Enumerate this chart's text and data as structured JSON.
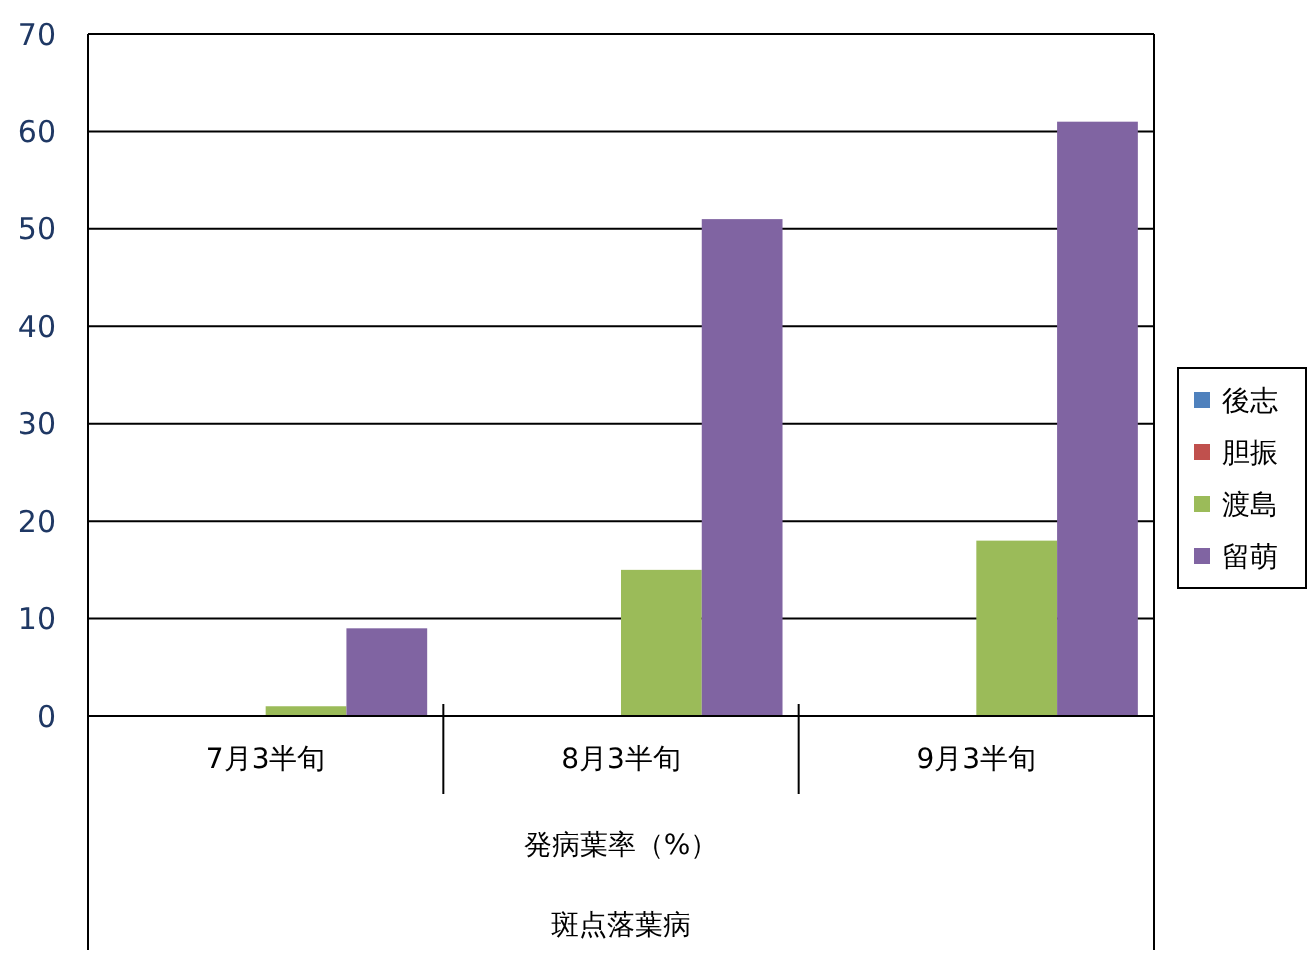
{
  "chart_data": {
    "type": "bar",
    "categories": [
      "7月3半旬",
      "8月3半旬",
      "9月3半旬"
    ],
    "series": [
      {
        "name": "後志",
        "color": "#4f81bd",
        "values": [
          0,
          0,
          0
        ]
      },
      {
        "name": "胆振",
        "color": "#c0504d",
        "values": [
          0,
          0,
          0
        ]
      },
      {
        "name": "渡島",
        "color": "#9bbb59",
        "values": [
          1,
          15,
          18
        ]
      },
      {
        "name": "留萌",
        "color": "#8064a2",
        "values": [
          9,
          51,
          61
        ]
      }
    ],
    "xlabel": "発病葉率（%）",
    "annotations": [
      "斑点落葉病"
    ],
    "ylim": [
      0,
      70
    ],
    "yticks": [
      0,
      10,
      20,
      30,
      40,
      50,
      60,
      70
    ],
    "grid": "y",
    "legend": "right"
  }
}
